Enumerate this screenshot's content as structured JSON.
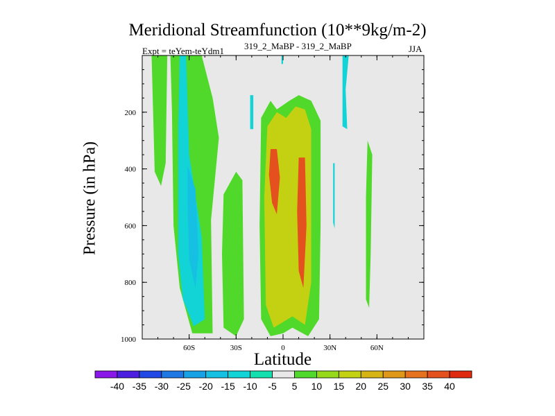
{
  "chart_data": {
    "type": "contour",
    "title": "Meridional Streamfunction (10**9kg/m-2)",
    "subtitle_left": "Expt = teYem-teYdm1",
    "subtitle_center": "319_2_MaBP - 319_2_MaBP",
    "subtitle_right": "JJA",
    "xlabel": "Latitude",
    "ylabel": "Pressure (in hPa)",
    "xlim": [
      -90,
      90
    ],
    "ylim": [
      1000,
      0
    ],
    "x_ticks": [
      {
        "value": -60,
        "label": "60S"
      },
      {
        "value": -30,
        "label": "30S"
      },
      {
        "value": 0,
        "label": "0"
      },
      {
        "value": 30,
        "label": "30N"
      },
      {
        "value": 60,
        "label": "60N"
      }
    ],
    "y_ticks": [
      {
        "value": 200,
        "label": "200"
      },
      {
        "value": 400,
        "label": "400"
      },
      {
        "value": 600,
        "label": "600"
      },
      {
        "value": 800,
        "label": "800"
      },
      {
        "value": 1000,
        "label": "1000"
      }
    ],
    "colorbar": {
      "levels": [
        "-40",
        "-35",
        "-30",
        "-25",
        "-20",
        "-15",
        "-10",
        "-5",
        "5",
        "10",
        "15",
        "20",
        "25",
        "30",
        "35",
        "40"
      ],
      "colors": [
        "#8a18e8",
        "#4b1ee0",
        "#2248e6",
        "#1f78e4",
        "#18a2e6",
        "#16c0e2",
        "#12d3d6",
        "#14dfae",
        "#e8e8e8",
        "#50d82a",
        "#96d81a",
        "#c4d012",
        "#d6b414",
        "#df9818",
        "#e67220",
        "#e4501e",
        "#e02a10"
      ]
    },
    "regions": [
      {
        "color_level": "5 to 10",
        "desc": "green band near 80S-70S upper levels",
        "poly": [
          [
            -84,
            0
          ],
          [
            -74,
            0
          ],
          [
            -75,
            380
          ],
          [
            -78,
            460
          ],
          [
            -82,
            410
          ]
        ]
      },
      {
        "color_level": "5 to 10",
        "desc": "green region 65S-45S",
        "poly": [
          [
            -72,
            0
          ],
          [
            -52,
            0
          ],
          [
            -45,
            150
          ],
          [
            -41,
            290
          ],
          [
            -46,
            580
          ],
          [
            -45,
            980
          ],
          [
            -58,
            980
          ],
          [
            -66,
            820
          ],
          [
            -70,
            600
          ],
          [
            -71,
            200
          ]
        ]
      },
      {
        "color_level": "-5 to -10",
        "desc": "cyan negative cell 65S-55S",
        "poly": [
          [
            -66,
            0
          ],
          [
            -62,
            0
          ],
          [
            -60,
            350
          ],
          [
            -52,
            640
          ],
          [
            -50,
            930
          ],
          [
            -57,
            955
          ],
          [
            -64,
            860
          ],
          [
            -67,
            700
          ],
          [
            -67,
            250
          ]
        ]
      },
      {
        "color_level": "-10 to -15",
        "desc": "inner negative core near 60S 600hPa",
        "poly": [
          [
            -61,
            390
          ],
          [
            -56,
            470
          ],
          [
            -54,
            700
          ],
          [
            -56,
            820
          ],
          [
            -60,
            720
          ],
          [
            -61,
            530
          ]
        ]
      },
      {
        "color_level": "5 to 10",
        "desc": "green region 40S-25S lower troposphere",
        "poly": [
          [
            -38,
            490
          ],
          [
            -30,
            410
          ],
          [
            -26,
            440
          ],
          [
            -25,
            930
          ],
          [
            -30,
            990
          ],
          [
            -38,
            960
          ],
          [
            -39,
            700
          ]
        ]
      },
      {
        "color_level": "5 to 10",
        "desc": "main positive cell band 15S-25N",
        "poly": [
          [
            -14,
            220
          ],
          [
            -8,
            160
          ],
          [
            -4,
            190
          ],
          [
            4,
            160
          ],
          [
            10,
            140
          ],
          [
            18,
            160
          ],
          [
            24,
            230
          ],
          [
            24,
            600
          ],
          [
            23,
            930
          ],
          [
            16,
            990
          ],
          [
            6,
            960
          ],
          [
            0,
            980
          ],
          [
            -8,
            990
          ],
          [
            -14,
            930
          ],
          [
            -15,
            600
          ]
        ]
      },
      {
        "color_level": "10 to 25",
        "desc": "yellow/orange inner band 10S-18N",
        "poly": [
          [
            -10,
            250
          ],
          [
            -4,
            200
          ],
          [
            2,
            220
          ],
          [
            8,
            180
          ],
          [
            14,
            190
          ],
          [
            18,
            260
          ],
          [
            18,
            800
          ],
          [
            14,
            950
          ],
          [
            6,
            920
          ],
          [
            0,
            940
          ],
          [
            -6,
            960
          ],
          [
            -11,
            880
          ],
          [
            -12,
            500
          ]
        ]
      },
      {
        "color_level": "30 to 40",
        "desc": "red-orange core at 8S 450hPa",
        "poly": [
          [
            -8,
            330
          ],
          [
            -4,
            330
          ],
          [
            -2,
            430
          ],
          [
            -4,
            560
          ],
          [
            -7,
            520
          ],
          [
            -9,
            420
          ]
        ]
      },
      {
        "color_level": "30 to 40",
        "desc": "red-orange core at 12N 650hPa",
        "poly": [
          [
            10,
            360
          ],
          [
            14,
            360
          ],
          [
            15,
            600
          ],
          [
            13,
            820
          ],
          [
            10,
            760
          ],
          [
            9,
            550
          ]
        ]
      },
      {
        "color_level": "5 to 10",
        "desc": "green streak 53N-57N",
        "poly": [
          [
            54,
            300
          ],
          [
            57,
            350
          ],
          [
            56,
            700
          ],
          [
            55,
            890
          ],
          [
            53,
            860
          ],
          [
            53,
            500
          ]
        ]
      },
      {
        "color_level": "-5 to -10",
        "desc": "cyan streak 40N near top",
        "poly": [
          [
            38,
            0
          ],
          [
            42,
            0
          ],
          [
            40,
            120
          ],
          [
            41,
            260
          ],
          [
            38,
            250
          ]
        ]
      },
      {
        "color_level": "-5 to -10",
        "desc": "cyan sliver at 33N 500hPa",
        "poly": [
          [
            32,
            380
          ],
          [
            33,
            380
          ],
          [
            33,
            610
          ],
          [
            32,
            590
          ]
        ]
      },
      {
        "color_level": "-5 to -10",
        "desc": "cyan sliver at 20S upper troposphere",
        "poly": [
          [
            -21,
            140
          ],
          [
            -19,
            140
          ],
          [
            -19,
            260
          ],
          [
            -21,
            260
          ]
        ]
      },
      {
        "color_level": "-5 to -10",
        "desc": "cyan thin sliver near 0",
        "poly": [
          [
            -1,
            0
          ],
          [
            0,
            0
          ],
          [
            0,
            30
          ],
          [
            -1,
            30
          ]
        ]
      }
    ]
  }
}
